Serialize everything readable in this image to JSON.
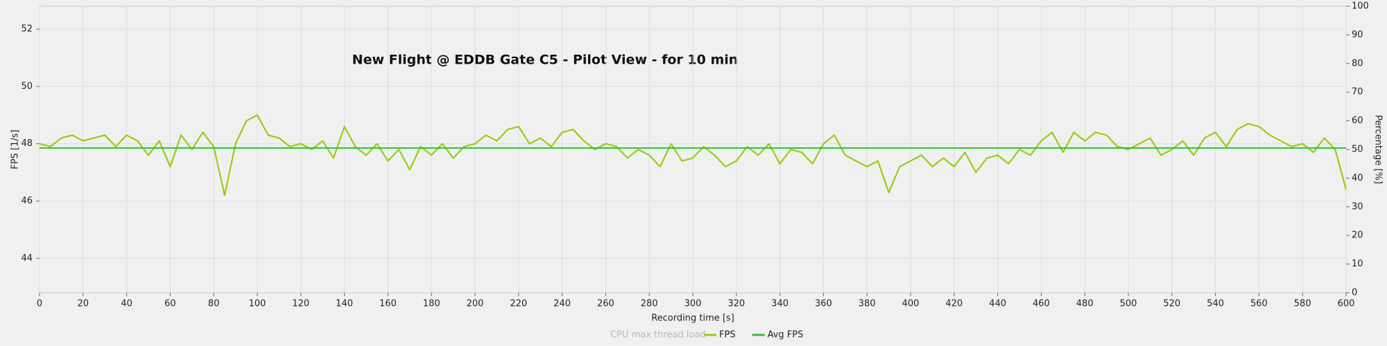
{
  "chart_data": {
    "type": "line",
    "title": "New Flight @ EDDB Gate C5 - Pilot View - for 10 min",
    "x_label": "Recording time [s]",
    "y_label": "FPS [1/s]",
    "y2_label": "Percentage [%]",
    "xlim": [
      0,
      600
    ],
    "xticks": [
      0,
      20,
      40,
      60,
      80,
      100,
      120,
      140,
      160,
      180,
      200,
      220,
      240,
      260,
      280,
      300,
      320,
      340,
      360,
      380,
      400,
      420,
      440,
      460,
      480,
      500,
      520,
      540,
      560,
      580,
      600
    ],
    "ylim": [
      42.8,
      52.8
    ],
    "yticks": [
      44,
      46,
      48,
      50,
      52
    ],
    "y2lim": [
      0,
      100
    ],
    "y2ticks": [
      0,
      10,
      20,
      30,
      40,
      50,
      60,
      70,
      80,
      90,
      100
    ],
    "grid": true,
    "x": [
      0,
      5,
      10,
      15,
      20,
      25,
      30,
      35,
      40,
      45,
      50,
      55,
      60,
      65,
      70,
      75,
      80,
      85,
      90,
      95,
      100,
      105,
      110,
      115,
      120,
      125,
      130,
      135,
      140,
      145,
      150,
      155,
      160,
      165,
      170,
      175,
      180,
      185,
      190,
      195,
      200,
      205,
      210,
      215,
      220,
      225,
      230,
      235,
      240,
      245,
      250,
      255,
      260,
      265,
      270,
      275,
      280,
      285,
      290,
      295,
      300,
      305,
      310,
      315,
      320,
      325,
      330,
      335,
      340,
      345,
      350,
      355,
      360,
      365,
      370,
      375,
      380,
      385,
      390,
      395,
      400,
      405,
      410,
      415,
      420,
      425,
      430,
      435,
      440,
      445,
      450,
      455,
      460,
      465,
      470,
      475,
      480,
      485,
      490,
      495,
      500,
      505,
      510,
      515,
      520,
      525,
      530,
      535,
      540,
      545,
      550,
      555,
      560,
      565,
      570,
      575,
      580,
      585,
      590,
      595,
      600
    ],
    "series": [
      {
        "name": "FPS",
        "color": "#99cc11",
        "values": [
          48.0,
          47.9,
          48.2,
          48.3,
          48.1,
          48.2,
          48.3,
          47.9,
          48.3,
          48.1,
          47.6,
          48.1,
          47.2,
          48.3,
          47.8,
          48.4,
          47.9,
          46.2,
          48.0,
          48.8,
          49.0,
          48.3,
          48.2,
          47.9,
          48.0,
          47.8,
          48.1,
          47.5,
          48.6,
          47.9,
          47.6,
          48.0,
          47.4,
          47.8,
          47.1,
          47.9,
          47.6,
          48.0,
          47.5,
          47.9,
          48.0,
          48.3,
          48.1,
          48.5,
          48.6,
          48.0,
          48.2,
          47.9,
          48.4,
          48.5,
          48.1,
          47.8,
          48.0,
          47.9,
          47.5,
          47.8,
          47.6,
          47.2,
          48.0,
          47.4,
          47.5,
          47.9,
          47.6,
          47.2,
          47.4,
          47.9,
          47.6,
          48.0,
          47.3,
          47.8,
          47.7,
          47.3,
          48.0,
          48.3,
          47.6,
          47.4,
          47.2,
          47.4,
          46.3,
          47.2,
          47.4,
          47.6,
          47.2,
          47.5,
          47.2,
          47.7,
          47.0,
          47.5,
          47.6,
          47.3,
          47.8,
          47.6,
          48.1,
          48.4,
          47.7,
          48.4,
          48.1,
          48.4,
          48.3,
          47.9,
          47.8,
          48.0,
          48.2,
          47.6,
          47.8,
          48.1,
          47.6,
          48.2,
          48.4,
          47.9,
          48.5,
          48.7,
          48.6,
          48.3,
          48.1,
          47.9,
          48.0,
          47.7,
          48.2,
          47.8,
          46.4
        ]
      }
    ],
    "reference_lines": [
      {
        "name": "Avg FPS",
        "color": "#33bb33",
        "value": 47.85
      }
    ],
    "disabled_series": [
      {
        "name": "CPU max thread load",
        "axis": "y2"
      }
    ]
  }
}
